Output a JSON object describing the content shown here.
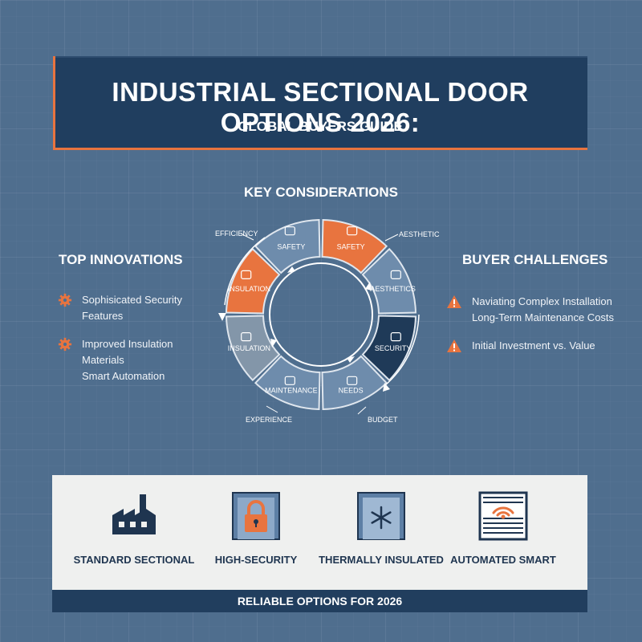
{
  "header": {
    "title": "INDUSTRIAL SECTIONAL DOOR OPTIONS 2026:",
    "subtitle": "GLOBAL BUYERS GUIDE"
  },
  "key_considerations": {
    "title": "KEY CONSIDERATIONS",
    "segments": [
      {
        "label": "SAFETY",
        "icon": "lock-tablet-icon",
        "color": "#e8743f"
      },
      {
        "label": "AESTHETICS",
        "icon": "image-frame-icon",
        "color": "#6e8cac"
      },
      {
        "label": "SECURITY",
        "icon": "lock-hand-icon",
        "color": "#1f3a58"
      },
      {
        "label": "NEEDS",
        "icon": "remote-icon",
        "color": "#6e8cac"
      },
      {
        "label": "MAINTENANCE",
        "icon": "panel-icon",
        "color": "#6e8cac"
      },
      {
        "label": "INSULATION",
        "icon": "layers-icon",
        "color": "#8396a9"
      },
      {
        "label": "INSULATION",
        "icon": "thermometer-icon",
        "color": "#e8743f"
      },
      {
        "label": "SAFETY",
        "icon": "shield-icon",
        "color": "#6e8cac"
      }
    ],
    "outer_labels": {
      "efficiency": "EFFICIENCY",
      "aesthetic": "AESTHETIC",
      "experience": "EXPERIENCE",
      "budget": "BUDGET"
    }
  },
  "innovations": {
    "title": "TOP INNOVATIONS",
    "items": [
      {
        "line1": "Sophisicated Security",
        "line2": "Features"
      },
      {
        "line1": "Improved Insulation Materials",
        "line2": "Smart Automation"
      }
    ]
  },
  "challenges": {
    "title": "BUYER CHALLENGES",
    "items": [
      {
        "line1": "Naviating Complex Installation",
        "line2": "Long-Term Maintenance Costs"
      },
      {
        "line1": "Initial Investment vs. Value",
        "line2": ""
      }
    ]
  },
  "options": [
    {
      "label": "STANDARD SECTIONAL",
      "icon": "factory-icon"
    },
    {
      "label": "HIGH-SECURITY",
      "icon": "padlock-door-icon"
    },
    {
      "label": "THERMALLY INSULATED",
      "icon": "snowflake-door-icon"
    },
    {
      "label": "AUTOMATED SMART",
      "icon": "wifi-door-icon"
    }
  ],
  "footer": {
    "text": "RELIABLE OPTIONS FOR 2026"
  },
  "colors": {
    "background": "#4f6e8e",
    "navy": "#203e5f",
    "accent_orange": "#e8743f",
    "panel": "#eff0ef"
  }
}
